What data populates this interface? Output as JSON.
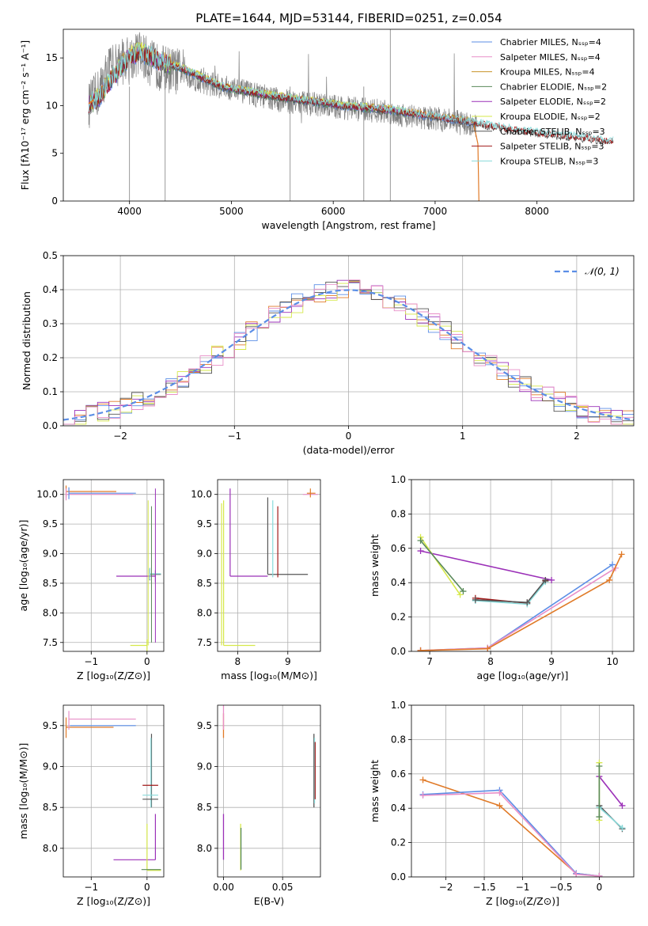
{
  "title": "PLATE=1644, MJD=53144, FIBERID=0251, z=0.054",
  "colors": {
    "chabrier_miles": "#5b8ee6",
    "salpeter_miles": "#e88fc8",
    "kroupa_miles": "#c8922a",
    "chabrier_elodie": "#5a8a5a",
    "salpeter_elodie": "#9b30b8",
    "kroupa_elodie": "#d6e84a",
    "chabrier_stelib": "#555555",
    "salpeter_stelib": "#a01818",
    "kroupa_stelib": "#88dada",
    "data": "#808080",
    "orange": "#e07a28",
    "normal": "#5b8ee6"
  },
  "chart_data": [
    {
      "id": "spectrum",
      "type": "line",
      "xlabel": "wavelength [Angstrom, rest frame]",
      "ylabel": "Flux [fλ10⁻¹⁷ erg cm⁻² s⁻¹ A⁻¹]",
      "xlim": [
        3350,
        8950
      ],
      "ylim": [
        0,
        18
      ],
      "xticks": [
        4000,
        5000,
        6000,
        7000,
        8000
      ],
      "yticks": [
        0,
        5,
        10,
        15
      ],
      "grid": false,
      "legend_position": "top-right",
      "legend": [
        "Chabrier MILES, Nₛₛₚ=4",
        "Salpeter MILES, Nₛₛₚ=4",
        "Kroupa MILES, Nₛₛₚ=4",
        "Chabrier ELODIE, Nₛₛₚ=2",
        "Salpeter ELODIE, Nₛₛₚ=2",
        "Kroupa ELODIE, Nₛₛₚ=2",
        "Chabrier STELIB, Nₛₛₚ=3",
        "Salpeter STELIB, Nₛₛₚ=3",
        "Kroupa STELIB, Nₛₛₚ=3"
      ],
      "model_continuum": {
        "x": [
          3600,
          3700,
          3800,
          3900,
          4000,
          4100,
          4200,
          4300,
          4500,
          4700,
          4900,
          5100,
          5300,
          5500,
          5700,
          5900,
          6100,
          6300,
          6500,
          6700,
          6900,
          7100,
          7300,
          7500,
          7700,
          7900,
          8100,
          8300,
          8500,
          8700
        ],
        "y": [
          10.2,
          10.8,
          12.5,
          13.8,
          15.2,
          15.6,
          15.2,
          14.6,
          14.0,
          13.0,
          12.0,
          11.6,
          11.2,
          10.9,
          10.6,
          10.3,
          10.0,
          9.8,
          9.6,
          9.3,
          9.0,
          8.7,
          8.4,
          8.0,
          7.6,
          7.3,
          7.0,
          6.8,
          6.6,
          6.3
        ]
      },
      "data_spectrum": {
        "x": [
          3600,
          3700,
          3800,
          3900,
          4000,
          4100,
          4200,
          4300,
          4500,
          4700,
          4900,
          5100,
          5300,
          5500,
          5700,
          5900,
          6100,
          6300,
          6500,
          6700,
          6800,
          7000,
          7200,
          7400
        ],
        "y": [
          10.0,
          11.5,
          14.0,
          14.5,
          15.0,
          15.5,
          14.5,
          14.0,
          13.5,
          12.5,
          12.0,
          11.5,
          11.0,
          10.5,
          10.3,
          10.0,
          9.8,
          9.6,
          9.4,
          9.0,
          8.8,
          8.6,
          8.3,
          7.9
        ]
      }
    },
    {
      "id": "residual_histogram",
      "type": "line",
      "xlabel": "(data-model)/error",
      "ylabel": "Normed distribution",
      "xlim": [
        -2.5,
        2.5
      ],
      "ylim": [
        0,
        0.5
      ],
      "xticks": [
        -2,
        -1,
        0,
        1,
        2
      ],
      "yticks": [
        0.0,
        0.1,
        0.2,
        0.3,
        0.4,
        0.5
      ],
      "grid": true,
      "legend_position": "top-right",
      "legend": [
        "𝒩(0, 1)"
      ],
      "bin_width": 0.1
    },
    {
      "id": "age_vs_Z",
      "type": "scatter",
      "xlabel": "Z [log₁₀(Z/Z⊙)]",
      "ylabel": "age  [log₁₀(age/yr)]",
      "xlim": [
        -1.5,
        0.3
      ],
      "ylim": [
        7.35,
        10.25
      ],
      "xticks": [
        -1,
        0
      ],
      "yticks": [
        7.5,
        8.0,
        8.5,
        9.0,
        9.5,
        10.0
      ],
      "grid": true,
      "points": [
        {
          "c": "orange",
          "x": -1.45,
          "y": 10.05,
          "xerr": [
            0,
            0.9
          ]
        },
        {
          "c": "salpeter_miles",
          "x": -1.45,
          "y": 10.0,
          "xerr": [
            0,
            1.2
          ]
        },
        {
          "c": "chabrier_miles",
          "x": -1.4,
          "y": 10.02,
          "xerr": [
            0,
            1.2
          ]
        },
        {
          "c": "salpeter_elodie",
          "x": 0.15,
          "y": 8.62,
          "xerr": [
            0.7,
            0
          ]
        },
        {
          "c": "chabrier_stelib",
          "x": 0.05,
          "y": 8.65,
          "xerr": [
            0,
            0.2
          ]
        },
        {
          "c": "kroupa_stelib",
          "x": 0.05,
          "y": 8.66,
          "xerr": [
            0,
            0.2
          ]
        },
        {
          "c": "kroupa_elodie",
          "x": 0.0,
          "y": 7.45,
          "xerr": [
            0.3,
            0
          ]
        }
      ]
    },
    {
      "id": "age_vs_mass",
      "type": "scatter",
      "xlabel": "mass [log₁₀(M/M⊙)]",
      "ylabel": "",
      "xlim": [
        7.6,
        9.65
      ],
      "ylim": [
        7.35,
        10.25
      ],
      "xticks": [
        8,
        9
      ],
      "yticks": [
        7.5,
        8.0,
        8.5,
        9.0,
        9.5,
        10.0
      ],
      "grid": true,
      "points": [
        {
          "c": "orange",
          "x": 9.45,
          "y": 10.02
        },
        {
          "c": "salpeter_miles",
          "x": 9.5,
          "y": 10.0
        },
        {
          "c": "salpeter_elodie",
          "x": 7.85,
          "y": 8.62
        },
        {
          "c": "chabrier_stelib",
          "x": 8.6,
          "y": 8.65
        },
        {
          "c": "kroupa_elodie",
          "x": 7.72,
          "y": 7.45
        }
      ]
    },
    {
      "id": "massweight_vs_age",
      "type": "line",
      "xlabel": "age  [log₁₀(age/yr)]",
      "ylabel": "mass weight",
      "xlim": [
        6.7,
        10.35
      ],
      "ylim": [
        0,
        1.0
      ],
      "xticks": [
        7,
        8,
        9,
        10
      ],
      "yticks": [
        0.0,
        0.2,
        0.4,
        0.6,
        0.8,
        1.0
      ],
      "grid": true,
      "series": [
        {
          "c": "salpeter_elodie",
          "x": [
            6.85,
            9.0
          ],
          "y": [
            0.585,
            0.415
          ]
        },
        {
          "c": "kroupa_elodie",
          "x": [
            6.85,
            7.5
          ],
          "y": [
            0.665,
            0.33
          ]
        },
        {
          "c": "chabrier_elodie",
          "x": [
            6.85,
            7.55
          ],
          "y": [
            0.645,
            0.35
          ]
        },
        {
          "c": "salpeter_stelib",
          "x": [
            7.75,
            8.6,
            8.9
          ],
          "y": [
            0.31,
            0.28,
            0.41
          ]
        },
        {
          "c": "kroupa_stelib",
          "x": [
            7.75,
            8.6,
            8.9
          ],
          "y": [
            0.295,
            0.275,
            0.405
          ]
        },
        {
          "c": "chabrier_stelib",
          "x": [
            7.75,
            8.6,
            8.9
          ],
          "y": [
            0.3,
            0.285,
            0.415
          ]
        },
        {
          "c": "chabrier_miles",
          "x": [
            6.85,
            7.95,
            10.0
          ],
          "y": [
            0.005,
            0.02,
            0.505
          ]
        },
        {
          "c": "salpeter_miles",
          "x": [
            6.85,
            7.95,
            10.05
          ],
          "y": [
            0.005,
            0.02,
            0.485
          ]
        },
        {
          "c": "orange",
          "x": [
            6.85,
            7.95,
            9.95,
            10.15
          ],
          "y": [
            0.005,
            0.015,
            0.415,
            0.565
          ]
        }
      ]
    },
    {
      "id": "mass_vs_Z",
      "type": "scatter",
      "xlabel": "Z [log₁₀(Z/Z⊙)]",
      "ylabel": "mass [log₁₀(M/M⊙)]",
      "xlim": [
        -1.5,
        0.3
      ],
      "ylim": [
        7.65,
        9.75
      ],
      "xticks": [
        -1,
        0
      ],
      "yticks": [
        8.0,
        8.5,
        9.0,
        9.5
      ],
      "grid": true
    },
    {
      "id": "mass_vs_EBV",
      "type": "scatter",
      "xlabel": "E(B-V)",
      "ylabel": "",
      "xlim": [
        -0.005,
        0.082
      ],
      "ylim": [
        7.65,
        9.75
      ],
      "xticks": [
        0.0,
        0.05
      ],
      "xticklabels": [
        "0.00",
        "0.05"
      ],
      "yticks": [
        8.0,
        8.5,
        9.0,
        9.5
      ],
      "grid": true
    },
    {
      "id": "massweight_vs_Z",
      "type": "line",
      "xlabel": "Z [log₁₀(Z/Z⊙)]",
      "ylabel": "mass weight",
      "xlim": [
        -2.45,
        0.45
      ],
      "ylim": [
        0,
        1.0
      ],
      "xticks": [
        -2.0,
        -1.5,
        -1.0,
        -0.5,
        0.0
      ],
      "yticks": [
        0.0,
        0.2,
        0.4,
        0.6,
        0.8,
        1.0
      ],
      "grid": true,
      "series": [
        {
          "c": "orange",
          "x": [
            -2.3,
            -1.3,
            -0.3,
            0.0
          ],
          "y": [
            0.565,
            0.415,
            0.02,
            0.005
          ]
        },
        {
          "c": "chabrier_miles",
          "x": [
            -2.3,
            -1.3,
            -0.3,
            0.0
          ],
          "y": [
            0.48,
            0.505,
            0.02,
            0.005
          ]
        },
        {
          "c": "salpeter_miles",
          "x": [
            -2.3,
            -1.3,
            -0.3,
            0.0
          ],
          "y": [
            0.475,
            0.49,
            0.015,
            0.005
          ]
        },
        {
          "c": "salpeter_elodie",
          "x": [
            0.0,
            0.3
          ],
          "y": [
            0.585,
            0.415
          ]
        },
        {
          "c": "kroupa_elodie",
          "x": [
            0.0,
            0.0
          ],
          "y": [
            0.665,
            0.33
          ]
        },
        {
          "c": "chabrier_stelib",
          "x": [
            0.0,
            0.3
          ],
          "y": [
            0.415,
            0.28
          ]
        },
        {
          "c": "kroupa_stelib",
          "x": [
            0.0,
            0.3
          ],
          "y": [
            0.405,
            0.285
          ]
        },
        {
          "c": "chabrier_elodie",
          "x": [
            0.0,
            0.0
          ],
          "y": [
            0.645,
            0.35
          ]
        }
      ]
    }
  ]
}
